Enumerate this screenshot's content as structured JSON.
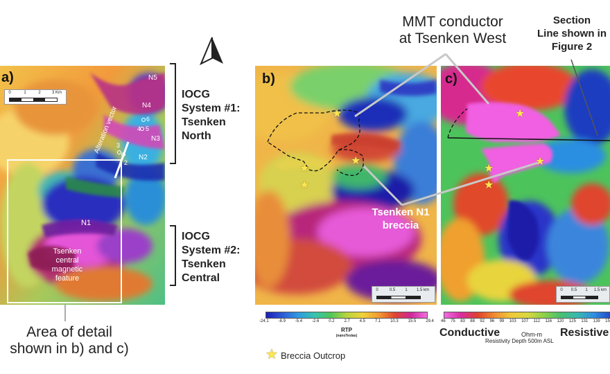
{
  "north_arrow": {
    "label": "north-arrow"
  },
  "panel_a": {
    "label": "a)",
    "scale_ticks": [
      "0",
      "1",
      "2",
      "3 Km"
    ],
    "sites": [
      "N5",
      "N4",
      "6",
      "4",
      "5",
      "N3",
      "3",
      "N2",
      "2",
      "N1"
    ],
    "vector_label": "Alteration vector",
    "central_label": "Tsenken central magnetic feature"
  },
  "iocg1": {
    "line1": "IOCG",
    "line2": "System #1:",
    "line3": "Tsenken",
    "line4": "North"
  },
  "iocg2": {
    "line1": "IOCG",
    "line2": "System #2:",
    "line3": "Tsenken",
    "line4": "Central"
  },
  "area_detail": {
    "line1": "Area of detail",
    "line2": "shown in b) and c)"
  },
  "panel_b": {
    "label": "b)",
    "scale_ticks": [
      "0",
      "0.5",
      "1",
      "1.5 km"
    ],
    "colorbar_ticks": [
      "-24.1",
      "-8.9",
      "-5.4",
      "-2.6",
      "0.2",
      "2.7",
      "4.5",
      "7.1",
      "10.3",
      "15.5",
      "29.4"
    ],
    "colorbar_title": "RTP",
    "colorbar_unit": "(nanoTeslas)"
  },
  "panel_c": {
    "label": "c)",
    "scale_ticks": [
      "0",
      "0.5",
      "1",
      "1.5 km"
    ],
    "colorbar_ticks": [
      "46",
      "75",
      "83",
      "88",
      "92",
      "96",
      "99",
      "103",
      "107",
      "112",
      "116",
      "120",
      "125",
      "131",
      "139",
      "15"
    ],
    "conductive": "Conductive",
    "unit": "Ohm-m",
    "resistive": "Resistive",
    "depth": "Resistivity Depth 500m ASL"
  },
  "mmt": {
    "line1": "MMT conductor",
    "line2": "at Tsenken West"
  },
  "section": {
    "line1": "Section",
    "line2": "Line shown in",
    "line3": "Figure 2"
  },
  "n1_breccia": {
    "line1": "Tsenken N1",
    "line2": "breccia"
  },
  "legend": {
    "text": "Breccia Outcrop"
  },
  "colors": {
    "conductive_pink": "#f04ce0",
    "magenta": "#d9159e",
    "deep_blue": "#1c1fb5"
  }
}
